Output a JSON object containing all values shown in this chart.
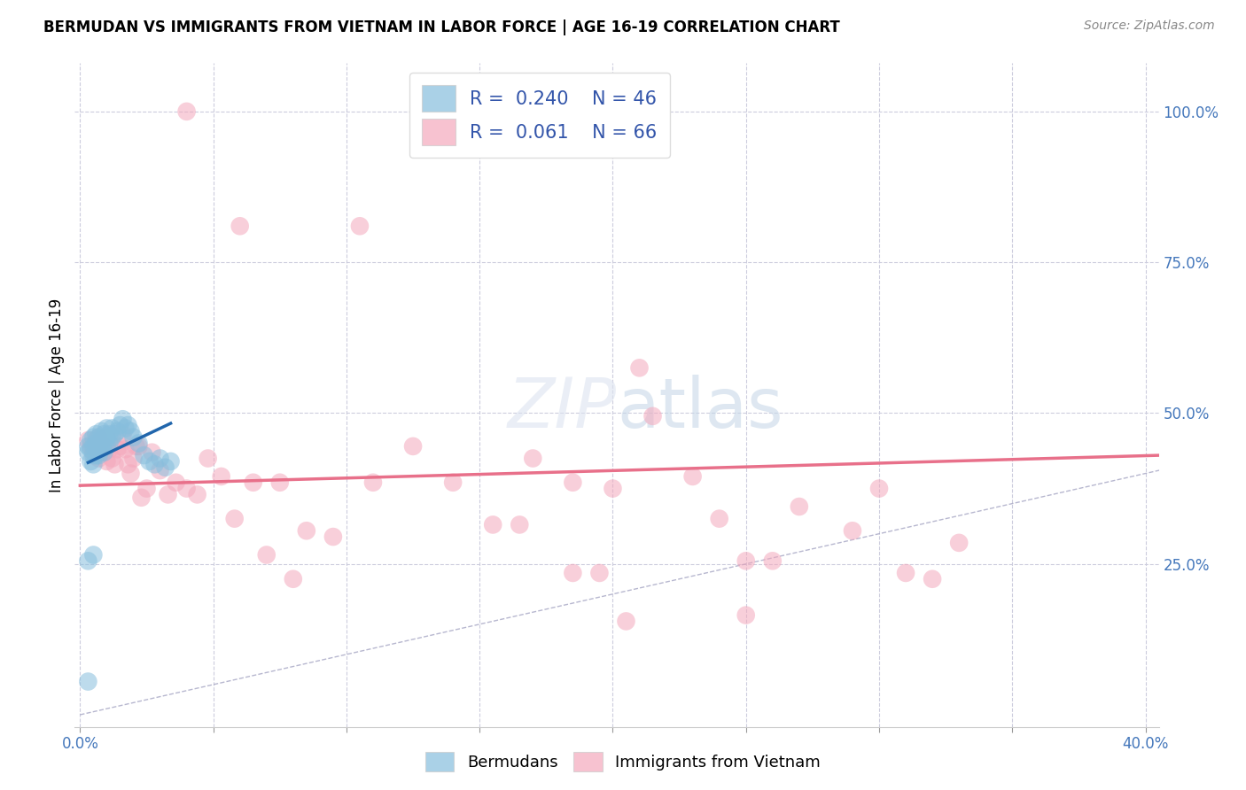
{
  "title": "BERMUDAN VS IMMIGRANTS FROM VIETNAM IN LABOR FORCE | AGE 16-19 CORRELATION CHART",
  "source": "Source: ZipAtlas.com",
  "ylabel": "In Labor Force | Age 16-19",
  "xlim": [
    -0.002,
    0.405
  ],
  "ylim": [
    -0.02,
    1.08
  ],
  "xtick_positions": [
    0.0,
    0.05,
    0.1,
    0.15,
    0.2,
    0.25,
    0.3,
    0.35,
    0.4
  ],
  "ytick_positions": [
    0.25,
    0.5,
    0.75,
    1.0
  ],
  "ytick_labels": [
    "25.0%",
    "50.0%",
    "75.0%",
    "100.0%"
  ],
  "blue_R": 0.24,
  "blue_N": 46,
  "pink_R": 0.061,
  "pink_N": 66,
  "blue_color": "#87BEDD",
  "pink_color": "#F4A8BC",
  "blue_line_color": "#2166ac",
  "pink_line_color": "#E8708A",
  "diagonal_color": "#9999bb",
  "grid_color": "#ccccdd",
  "blue_scatter_x": [
    0.003,
    0.003,
    0.004,
    0.004,
    0.004,
    0.005,
    0.005,
    0.005,
    0.005,
    0.006,
    0.006,
    0.006,
    0.007,
    0.007,
    0.007,
    0.008,
    0.008,
    0.008,
    0.009,
    0.009,
    0.009,
    0.01,
    0.01,
    0.01,
    0.011,
    0.011,
    0.012,
    0.012,
    0.013,
    0.014,
    0.015,
    0.016,
    0.017,
    0.018,
    0.019,
    0.02,
    0.022,
    0.024,
    0.026,
    0.028,
    0.03,
    0.032,
    0.034,
    0.003,
    0.005,
    0.003
  ],
  "blue_scatter_y": [
    0.435,
    0.445,
    0.42,
    0.44,
    0.455,
    0.415,
    0.43,
    0.445,
    0.46,
    0.43,
    0.45,
    0.465,
    0.43,
    0.445,
    0.46,
    0.44,
    0.455,
    0.47,
    0.435,
    0.45,
    0.465,
    0.445,
    0.46,
    0.475,
    0.45,
    0.465,
    0.46,
    0.475,
    0.465,
    0.47,
    0.48,
    0.49,
    0.475,
    0.48,
    0.47,
    0.46,
    0.45,
    0.43,
    0.42,
    0.415,
    0.425,
    0.41,
    0.42,
    0.255,
    0.265,
    0.055
  ],
  "pink_scatter_x": [
    0.003,
    0.004,
    0.005,
    0.006,
    0.007,
    0.007,
    0.008,
    0.009,
    0.01,
    0.01,
    0.011,
    0.012,
    0.013,
    0.014,
    0.015,
    0.016,
    0.017,
    0.018,
    0.019,
    0.02,
    0.021,
    0.022,
    0.023,
    0.025,
    0.027,
    0.03,
    0.033,
    0.036,
    0.04,
    0.044,
    0.048,
    0.053,
    0.058,
    0.065,
    0.075,
    0.085,
    0.095,
    0.11,
    0.125,
    0.14,
    0.155,
    0.17,
    0.185,
    0.2,
    0.215,
    0.23,
    0.25,
    0.27,
    0.29,
    0.31,
    0.24,
    0.26,
    0.195,
    0.165,
    0.32,
    0.3,
    0.25,
    0.21,
    0.07,
    0.08,
    0.06,
    0.105,
    0.04,
    0.185,
    0.205,
    0.33
  ],
  "pink_scatter_y": [
    0.455,
    0.445,
    0.435,
    0.455,
    0.425,
    0.46,
    0.435,
    0.445,
    0.42,
    0.46,
    0.44,
    0.425,
    0.415,
    0.44,
    0.445,
    0.465,
    0.44,
    0.415,
    0.4,
    0.425,
    0.445,
    0.445,
    0.36,
    0.375,
    0.435,
    0.405,
    0.365,
    0.385,
    0.375,
    0.365,
    0.425,
    0.395,
    0.325,
    0.385,
    0.385,
    0.305,
    0.295,
    0.385,
    0.445,
    0.385,
    0.315,
    0.425,
    0.385,
    0.375,
    0.495,
    0.395,
    0.255,
    0.345,
    0.305,
    0.235,
    0.325,
    0.255,
    0.235,
    0.315,
    0.225,
    0.375,
    0.165,
    0.575,
    0.265,
    0.225,
    0.81,
    0.81,
    1.0,
    0.235,
    0.155,
    0.285
  ],
  "blue_line_x": [
    0.003,
    0.034
  ],
  "blue_line_y": [
    0.418,
    0.483
  ],
  "pink_line_x": [
    0.0,
    0.405
  ],
  "pink_line_y": [
    0.38,
    0.43
  ]
}
